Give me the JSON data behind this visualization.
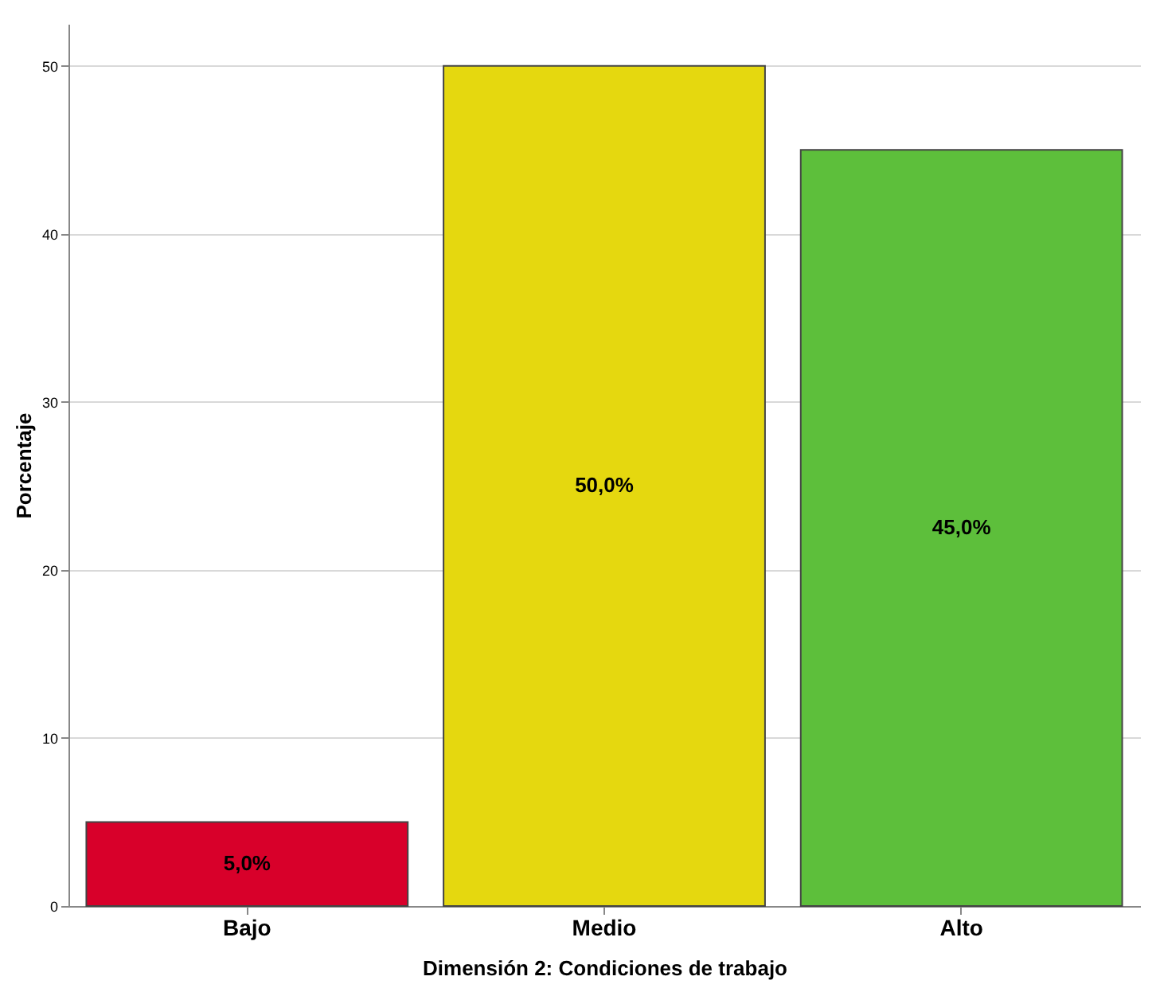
{
  "chart_data": {
    "type": "bar",
    "categories": [
      "Bajo",
      "Medio",
      "Alto"
    ],
    "values": [
      5.0,
      50.0,
      45.0
    ],
    "colors": [
      "#d8002a",
      "#e5d80f",
      "#5dbf3b"
    ],
    "value_labels": [
      "5,0%",
      "50,0%",
      "45,0%"
    ],
    "xlabel": "Dimensión 2: Condiciones de trabajo",
    "ylabel": "Porcentaje",
    "ylim": [
      0,
      52.5
    ],
    "yticks": [
      0,
      10,
      20,
      30,
      40,
      50
    ],
    "grid": "y"
  }
}
